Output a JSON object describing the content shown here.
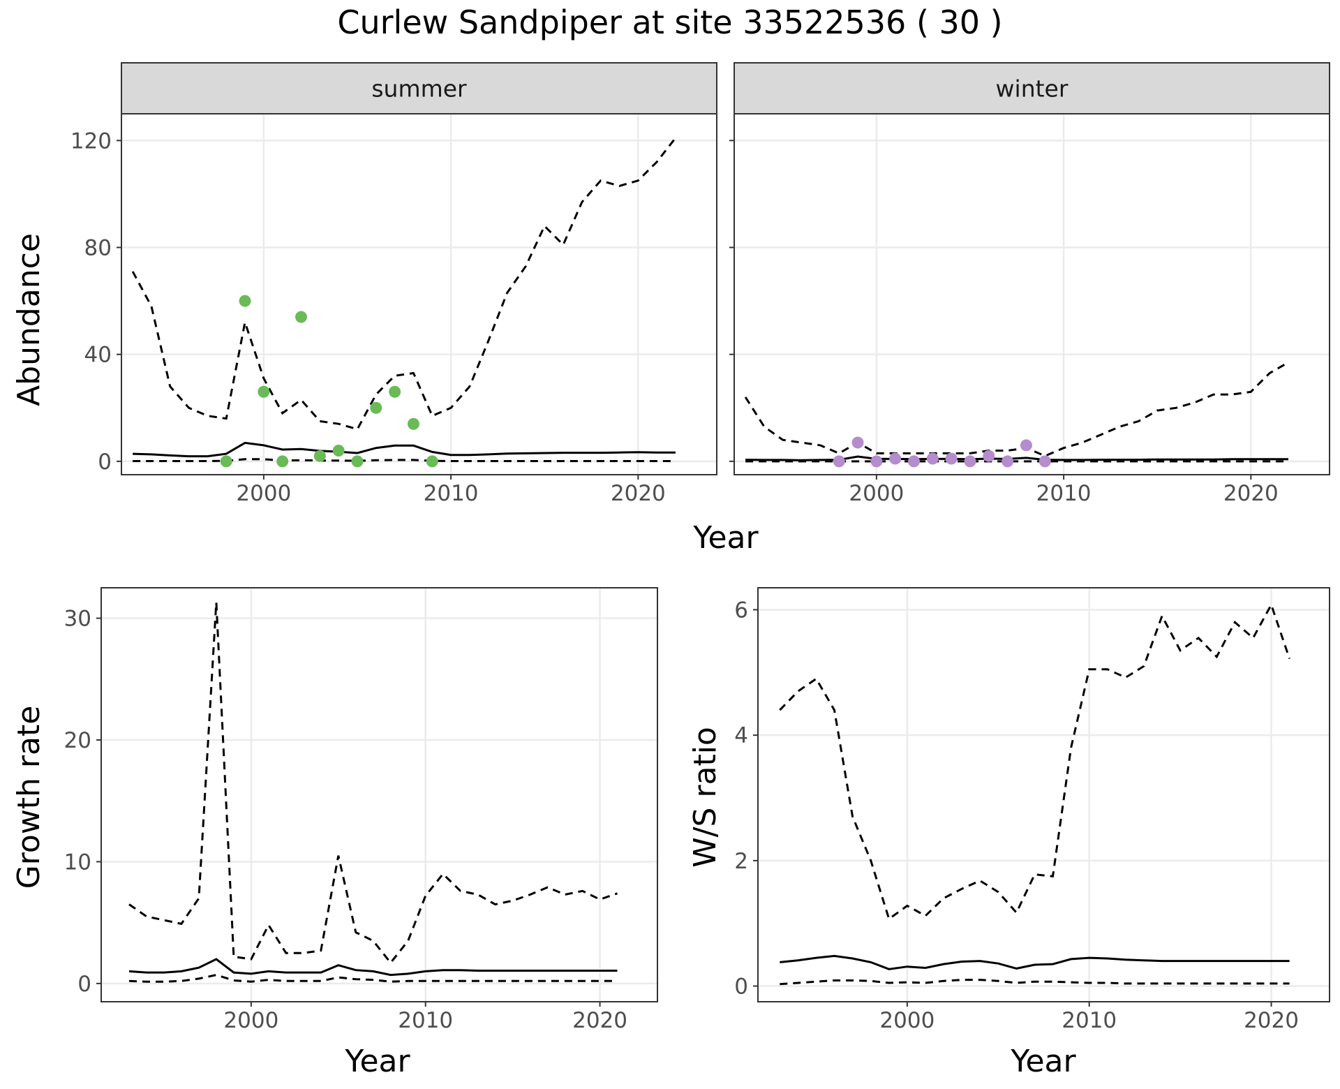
{
  "title": "Curlew Sandpiper at site 33522536 ( 30 )",
  "colors": {
    "summer_points": "#6aba58",
    "winter_points": "#b58ccc",
    "line": "#000000",
    "grid_major": "#ebebeb",
    "grid_minor": "#f4f4f4",
    "strip_fill": "#d9d9d9",
    "axis_text": "#4d4d4d"
  },
  "chart_data": [
    {
      "id": "abundance",
      "type": "line",
      "facets": [
        "summer",
        "winter"
      ],
      "xlabel": "Year",
      "ylabel": "Abundance",
      "xlim": [
        1992.4,
        2024.2
      ],
      "ylim": [
        -5,
        130
      ],
      "xticks": [
        2000,
        2010,
        2020
      ],
      "yticks": [
        0,
        40,
        80,
        120
      ],
      "grid": true,
      "panels": [
        {
          "facet": "summer",
          "years": [
            1993,
            1994,
            1995,
            1996,
            1997,
            1998,
            1999,
            2000,
            2001,
            2002,
            2003,
            2004,
            2005,
            2006,
            2007,
            2008,
            2009,
            2010,
            2011,
            2012,
            2013,
            2014,
            2015,
            2016,
            2017,
            2018,
            2019,
            2020,
            2021,
            2022
          ],
          "median": [
            2.8,
            2.6,
            2.2,
            1.9,
            1.9,
            2.8,
            6.9,
            6.0,
            4.4,
            4.6,
            3.9,
            3.6,
            3.1,
            5.0,
            5.9,
            5.9,
            3.5,
            2.4,
            2.4,
            2.6,
            2.9,
            3.0,
            3.1,
            3.2,
            3.2,
            3.2,
            3.3,
            3.4,
            3.3,
            3.3
          ],
          "upper": [
            71,
            58,
            28,
            20,
            17,
            16,
            52,
            31,
            18,
            23,
            15,
            14,
            12,
            25,
            32,
            33,
            17,
            20,
            28,
            45,
            63,
            73,
            88,
            81,
            97,
            105,
            103,
            105,
            112,
            121
          ],
          "lower": [
            0.1,
            0.1,
            0.1,
            0.1,
            0.1,
            0.2,
            0.8,
            0.8,
            0.3,
            0.4,
            0.3,
            0.3,
            0.2,
            0.4,
            0.5,
            0.5,
            0.2,
            0.1,
            0.1,
            0.1,
            0.1,
            0.1,
            0.1,
            0.1,
            0.1,
            0.1,
            0.1,
            0.1,
            0.1,
            0.1
          ],
          "obs_years": [
            1998,
            1999,
            2000,
            2001,
            2002,
            2003,
            2004,
            2005,
            2006,
            2007,
            2008,
            2009
          ],
          "obs": [
            0,
            60,
            26,
            0,
            54,
            2,
            4,
            0,
            20,
            26,
            14,
            0
          ]
        },
        {
          "facet": "winter",
          "years": [
            1993,
            1994,
            1995,
            1996,
            1997,
            1998,
            1999,
            2000,
            2001,
            2002,
            2003,
            2004,
            2005,
            2006,
            2007,
            2008,
            2009,
            2010,
            2011,
            2012,
            2013,
            2014,
            2015,
            2016,
            2017,
            2018,
            2019,
            2020,
            2021,
            2022
          ],
          "median": [
            0.6,
            0.5,
            0.5,
            0.4,
            0.5,
            0.6,
            1.8,
            0.9,
            0.9,
            0.8,
            0.9,
            0.9,
            0.8,
            1.0,
            0.9,
            1.3,
            0.6,
            0.5,
            0.5,
            0.6,
            0.6,
            0.6,
            0.7,
            0.7,
            0.7,
            0.7,
            0.8,
            0.8,
            0.8,
            0.8
          ],
          "upper": [
            24,
            13,
            8,
            7,
            6,
            3,
            7,
            3,
            3,
            3,
            3,
            3,
            3,
            4,
            4,
            5,
            2,
            5,
            7,
            10,
            13,
            15,
            19,
            20,
            22,
            25,
            25,
            26,
            33,
            37
          ],
          "lower": [
            0,
            0,
            0,
            0,
            0,
            0,
            0,
            0,
            0,
            0,
            0,
            0,
            0,
            0,
            0,
            0,
            0,
            0,
            0,
            0,
            0,
            0,
            0,
            0,
            0,
            0,
            0,
            0,
            0,
            0
          ],
          "obs_years": [
            1998,
            1999,
            2000,
            2001,
            2002,
            2003,
            2004,
            2005,
            2006,
            2007,
            2008,
            2009
          ],
          "obs": [
            0,
            7,
            0,
            1,
            0,
            1,
            1,
            0,
            2,
            0,
            6,
            0
          ]
        }
      ]
    },
    {
      "id": "growth",
      "type": "line",
      "xlabel": "Year",
      "ylabel": "Growth rate",
      "xlim": [
        1991.4,
        2023.3
      ],
      "ylim": [
        -1.5,
        32.5
      ],
      "xticks": [
        2000,
        2010,
        2020
      ],
      "yticks": [
        0,
        10,
        20,
        30
      ],
      "grid": true,
      "years": [
        1993,
        1994,
        1995,
        1996,
        1997,
        1998,
        1999,
        2000,
        2001,
        2002,
        2003,
        2004,
        2005,
        2006,
        2007,
        2008,
        2009,
        2010,
        2011,
        2012,
        2013,
        2014,
        2015,
        2016,
        2017,
        2018,
        2019,
        2020,
        2021
      ],
      "median": [
        1.0,
        0.9,
        0.9,
        1.0,
        1.3,
        2.0,
        0.9,
        0.8,
        1.0,
        0.9,
        0.9,
        0.9,
        1.5,
        1.1,
        1.0,
        0.7,
        0.8,
        1.0,
        1.1,
        1.1,
        1.05,
        1.05,
        1.05,
        1.05,
        1.05,
        1.05,
        1.05,
        1.05,
        1.05
      ],
      "upper": [
        6.5,
        5.5,
        5.2,
        4.9,
        7,
        31.3,
        2.2,
        2.0,
        4.8,
        2.5,
        2.5,
        2.7,
        10.5,
        4.2,
        3.5,
        1.7,
        3.5,
        7.2,
        9,
        7.6,
        7.3,
        6.5,
        6.8,
        7.3,
        7.9,
        7.3,
        7.6,
        6.9,
        7.4
      ],
      "lower": [
        0.2,
        0.15,
        0.15,
        0.2,
        0.4,
        0.7,
        0.25,
        0.15,
        0.3,
        0.2,
        0.2,
        0.2,
        0.5,
        0.35,
        0.3,
        0.15,
        0.2,
        0.2,
        0.2,
        0.2,
        0.2,
        0.2,
        0.2,
        0.2,
        0.2,
        0.2,
        0.2,
        0.2,
        0.2
      ]
    },
    {
      "id": "ratio",
      "type": "line",
      "xlabel": "Year",
      "ylabel": "W/S ratio",
      "xlim": [
        1991.8,
        2023.2
      ],
      "ylim": [
        -0.25,
        6.35
      ],
      "xticks": [
        2000,
        2010,
        2020
      ],
      "yticks": [
        0,
        2,
        4,
        6
      ],
      "grid": true,
      "years": [
        1993,
        1994,
        1995,
        1996,
        1997,
        1998,
        1999,
        2000,
        2001,
        2002,
        2003,
        2004,
        2005,
        2006,
        2007,
        2008,
        2009,
        2010,
        2011,
        2012,
        2013,
        2014,
        2015,
        2016,
        2017,
        2018,
        2019,
        2020,
        2021
      ],
      "median": [
        0.38,
        0.41,
        0.45,
        0.48,
        0.44,
        0.38,
        0.27,
        0.31,
        0.29,
        0.35,
        0.39,
        0.4,
        0.36,
        0.28,
        0.34,
        0.35,
        0.43,
        0.45,
        0.44,
        0.42,
        0.41,
        0.4,
        0.4,
        0.4,
        0.4,
        0.4,
        0.4,
        0.4,
        0.4
      ],
      "upper": [
        4.4,
        4.7,
        4.9,
        4.4,
        2.7,
        2.0,
        1.07,
        1.28,
        1.12,
        1.4,
        1.55,
        1.68,
        1.5,
        1.17,
        1.78,
        1.75,
        3.8,
        5.05,
        5.05,
        4.92,
        5.1,
        5.9,
        5.35,
        5.55,
        5.25,
        5.8,
        5.55,
        6.08,
        5.22
      ],
      "lower": [
        0.03,
        0.05,
        0.07,
        0.09,
        0.09,
        0.08,
        0.05,
        0.06,
        0.05,
        0.08,
        0.1,
        0.1,
        0.08,
        0.05,
        0.07,
        0.07,
        0.06,
        0.05,
        0.05,
        0.04,
        0.04,
        0.04,
        0.04,
        0.04,
        0.04,
        0.04,
        0.04,
        0.04,
        0.04
      ]
    }
  ]
}
